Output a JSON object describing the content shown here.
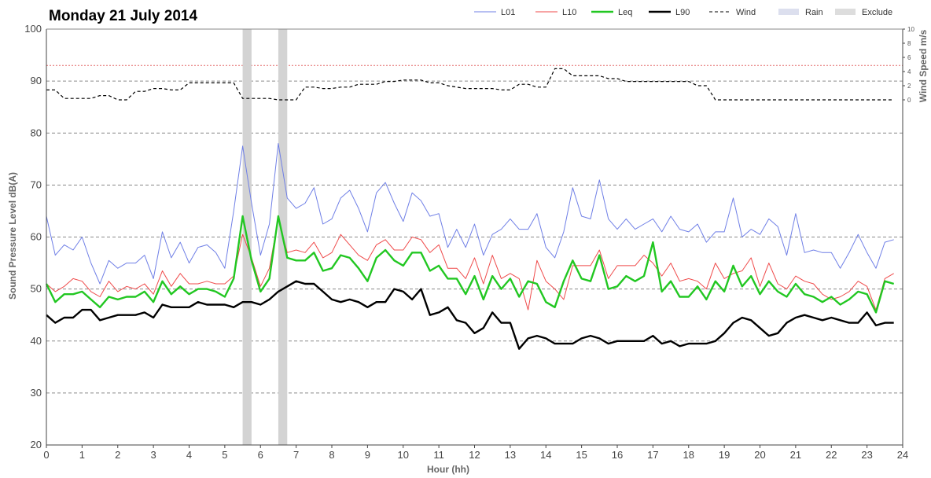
{
  "chart_data": {
    "type": "line",
    "title": "Monday 21 July 2014",
    "xlabel": "Hour (hh)",
    "ylabel": "Sound Pressure Level dB(A)",
    "y2label": "Wind Speed m/s",
    "xlim": [
      0,
      24
    ],
    "ylim": [
      20,
      100
    ],
    "y2lim": [
      0,
      10
    ],
    "x_ticks": [
      0,
      1,
      2,
      3,
      4,
      5,
      6,
      7,
      8,
      9,
      10,
      11,
      12,
      13,
      14,
      15,
      16,
      17,
      18,
      19,
      20,
      21,
      22,
      23,
      24
    ],
    "y_ticks": [
      20,
      30,
      40,
      50,
      60,
      70,
      80,
      90,
      100
    ],
    "y2_ticks": [
      0,
      2,
      4,
      6,
      8,
      10
    ],
    "threshold_line": 93,
    "grid": true,
    "legend_position": "top-right",
    "legend": [
      {
        "name": "L01",
        "style": "line",
        "color": "#6f7fe6"
      },
      {
        "name": "L10",
        "style": "line",
        "color": "#ef4a4a"
      },
      {
        "name": "Leq",
        "style": "thick-line",
        "color": "#22c722"
      },
      {
        "name": "L90",
        "style": "thick-line",
        "color": "#000000"
      },
      {
        "name": "Wind",
        "style": "dashed",
        "color": "#000000"
      },
      {
        "name": "Rain",
        "style": "band",
        "color": "#dcdfee"
      },
      {
        "name": "Exclude",
        "style": "band",
        "color": "#dddddd"
      }
    ],
    "exclude_periods": [
      [
        5.5,
        5.75
      ],
      [
        6.5,
        6.75
      ]
    ],
    "x_step": 0.25,
    "series": [
      {
        "name": "L01",
        "color": "#6f7fe6",
        "width": 1,
        "values": [
          64.0,
          56.5,
          58.5,
          57.5,
          60.0,
          55.0,
          51.0,
          55.5,
          54.0,
          55.0,
          55.0,
          56.5,
          52.0,
          61.0,
          56.0,
          59.0,
          55.0,
          58.0,
          58.5,
          57.0,
          54.0,
          65.0,
          77.5,
          66.5,
          56.5,
          62.5,
          78.0,
          67.5,
          65.5,
          66.5,
          69.5,
          62.5,
          63.5,
          67.5,
          69.0,
          65.5,
          61.0,
          68.5,
          70.5,
          66.5,
          63.0,
          68.5,
          67.0,
          64.0,
          64.5,
          58.0,
          61.5,
          58.0,
          62.5,
          56.5,
          60.5,
          61.5,
          63.5,
          61.5,
          61.5,
          64.5,
          58.0,
          56.0,
          61.0,
          69.5,
          64.0,
          63.5,
          71.0,
          63.5,
          61.5,
          63.5,
          61.5,
          62.5,
          63.5,
          61.0,
          64.0,
          61.5,
          61.0,
          62.5,
          59.0,
          61.0,
          61.0,
          67.5,
          60.0,
          61.5,
          60.5,
          63.5,
          62.0,
          56.5,
          64.5,
          57.0,
          57.5,
          57.0,
          57.0,
          54.0,
          57.0,
          60.5,
          57.0,
          54.0,
          59.0,
          59.5
        ]
      },
      {
        "name": "L10",
        "color": "#ef4a4a",
        "width": 1,
        "values": [
          51.0,
          49.5,
          50.5,
          52.0,
          51.5,
          49.5,
          48.5,
          51.5,
          49.5,
          50.5,
          50.0,
          51.0,
          49.0,
          53.5,
          50.5,
          53.0,
          51.0,
          51.0,
          51.5,
          51.0,
          51.0,
          52.5,
          60.5,
          56.0,
          50.5,
          54.0,
          63.5,
          57.0,
          57.5,
          57.0,
          59.0,
          56.0,
          57.0,
          60.5,
          58.5,
          56.5,
          55.5,
          58.5,
          59.5,
          57.5,
          57.5,
          60.0,
          59.5,
          57.0,
          58.5,
          54.0,
          54.0,
          52.0,
          56.0,
          51.0,
          56.5,
          52.0,
          53.0,
          52.0,
          46.0,
          55.5,
          51.5,
          50.0,
          48.0,
          54.5,
          54.5,
          54.5,
          57.5,
          52.0,
          54.5,
          54.5,
          54.5,
          56.5,
          55.0,
          52.5,
          55.0,
          51.5,
          52.0,
          51.5,
          50.0,
          55.0,
          52.0,
          53.0,
          53.5,
          56.0,
          50.5,
          55.0,
          51.0,
          50.0,
          52.5,
          51.5,
          51.0,
          49.0,
          48.0,
          48.5,
          49.5,
          51.5,
          50.5,
          46.0,
          52.0,
          53.0
        ]
      },
      {
        "name": "Leq",
        "color": "#22c722",
        "width": 2.4,
        "values": [
          51.0,
          47.5,
          49.0,
          49.0,
          49.5,
          48.0,
          46.5,
          48.5,
          48.0,
          48.5,
          48.5,
          49.5,
          47.5,
          51.5,
          49.0,
          50.5,
          49.0,
          50.0,
          50.0,
          49.5,
          48.5,
          52.0,
          64.0,
          55.5,
          49.5,
          52.0,
          64.0,
          56.0,
          55.5,
          55.5,
          57.0,
          53.5,
          54.0,
          56.5,
          56.0,
          54.0,
          51.5,
          56.0,
          57.5,
          55.5,
          54.5,
          57.0,
          57.0,
          53.5,
          54.5,
          52.0,
          52.0,
          49.0,
          52.5,
          48.0,
          52.5,
          50.0,
          52.0,
          48.5,
          51.5,
          51.0,
          47.5,
          46.5,
          51.5,
          55.5,
          52.0,
          51.5,
          56.5,
          50.0,
          50.5,
          52.5,
          51.5,
          52.5,
          59.0,
          49.5,
          51.5,
          48.5,
          48.5,
          50.5,
          48.0,
          51.5,
          49.5,
          54.5,
          50.5,
          52.5,
          49.0,
          51.5,
          49.5,
          48.5,
          51.0,
          49.0,
          48.5,
          47.5,
          48.5,
          47.0,
          48.0,
          49.5,
          49.0,
          45.5,
          51.5,
          51.0
        ]
      },
      {
        "name": "L90",
        "color": "#000000",
        "width": 2.4,
        "values": [
          45.0,
          43.5,
          44.5,
          44.5,
          46.0,
          46.0,
          44.0,
          44.5,
          45.0,
          45.0,
          45.0,
          45.5,
          44.5,
          47.0,
          46.5,
          46.5,
          46.5,
          47.5,
          47.0,
          47.0,
          47.0,
          46.5,
          47.5,
          47.5,
          47.0,
          48.0,
          49.5,
          50.5,
          51.5,
          51.0,
          51.0,
          49.5,
          48.0,
          47.5,
          48.0,
          47.5,
          46.5,
          47.5,
          47.5,
          50.0,
          49.5,
          48.0,
          50.0,
          45.0,
          45.5,
          46.5,
          44.0,
          43.5,
          41.5,
          42.5,
          45.5,
          43.5,
          43.5,
          38.5,
          40.5,
          41.0,
          40.5,
          39.5,
          39.5,
          39.5,
          40.5,
          41.0,
          40.5,
          39.5,
          40.0,
          40.0,
          40.0,
          40.0,
          41.0,
          39.5,
          40.0,
          39.0,
          39.5,
          39.5,
          39.5,
          40.0,
          41.5,
          43.5,
          44.5,
          44.0,
          42.5,
          41.0,
          41.5,
          43.5,
          44.5,
          45.0,
          44.5,
          44.0,
          44.5,
          44.0,
          43.5,
          43.5,
          45.5,
          43.0,
          43.5,
          43.5
        ]
      },
      {
        "name": "Wind",
        "color": "#000000",
        "width": 1.2,
        "dashed": true,
        "values": [
          1.4,
          1.4,
          0.2,
          0.2,
          0.2,
          0.2,
          0.6,
          0.6,
          0.0,
          0.0,
          1.2,
          1.2,
          1.6,
          1.6,
          1.4,
          1.4,
          2.4,
          2.4,
          2.4,
          2.4,
          2.4,
          2.4,
          0.2,
          0.2,
          0.2,
          0.2,
          0.0,
          0.0,
          0.0,
          1.8,
          1.8,
          1.6,
          1.6,
          1.8,
          1.8,
          2.2,
          2.2,
          2.2,
          2.6,
          2.6,
          2.8,
          2.8,
          2.8,
          2.4,
          2.4,
          2.0,
          1.8,
          1.6,
          1.6,
          1.6,
          1.6,
          1.4,
          1.4,
          2.2,
          2.2,
          1.8,
          1.8,
          4.4,
          4.4,
          3.4,
          3.4,
          3.4,
          3.4,
          3.0,
          3.0,
          2.6,
          2.6,
          2.6,
          2.6,
          2.6,
          2.6,
          2.6,
          2.6,
          2.0,
          2.0,
          0.0,
          0.0,
          0.0,
          0.0,
          0.0,
          0.0,
          0.0,
          0.0,
          0.0,
          0.0,
          0.0,
          0.0,
          0.0,
          0.0,
          0.0,
          0.0,
          0.0,
          0.0,
          0.0,
          0.0,
          0.0
        ]
      }
    ]
  }
}
